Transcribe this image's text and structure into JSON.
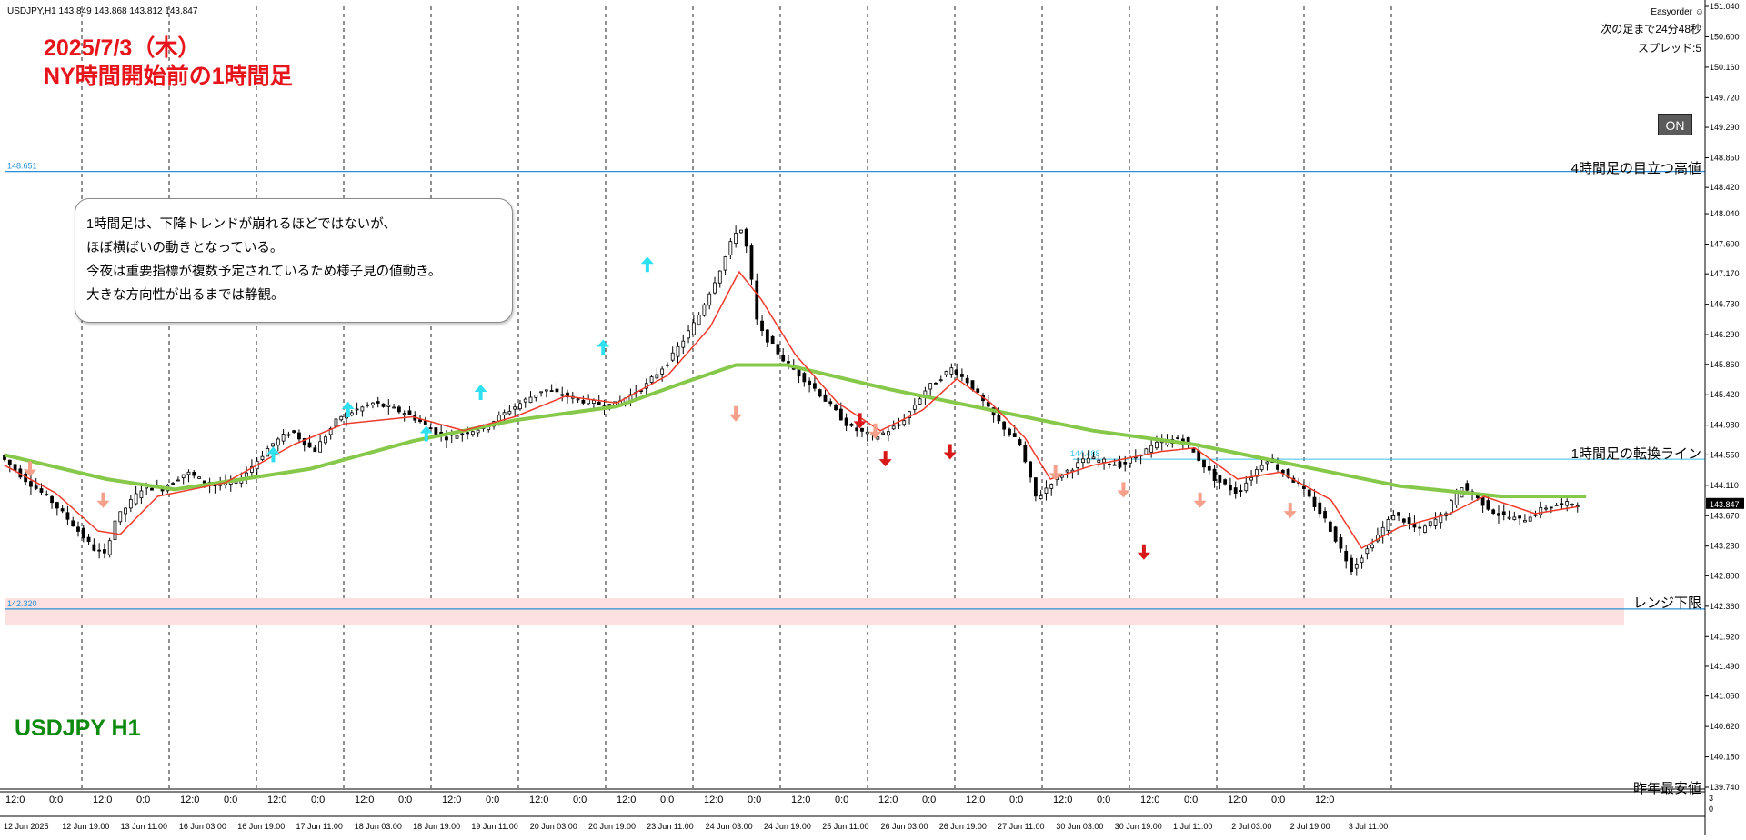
{
  "header": {
    "symbol_line": "USDJPY,H1  143.849 143.868 143.812 143.847"
  },
  "annotations": {
    "headline_line1": "2025/7/3（木）",
    "headline_line2": "NY時間開始前の1時間足",
    "footer_label": "USDJPY H1",
    "note_lines": [
      "1時間足は、下降トレンドが崩れるほどではないが、",
      "ほぼ横ばいの動きとなっている。",
      "今夜は重要指標が複数予定されているため様子見の値動き。",
      "大きな方向性が出るまでは静観。"
    ]
  },
  "ea_panel": {
    "title": "Easyorder ☺",
    "countdown": "次の足まで24分48秒",
    "spread": "スプレッド:5",
    "on_button": "ON"
  },
  "levels": [
    {
      "name": "4h-high",
      "label": "4時間足の目立つ高値",
      "value": 148.651,
      "value_text": "148.651",
      "color": "#2a8fd6"
    },
    {
      "name": "h1-reversal",
      "label": "1時間足の転換ライン",
      "value": 144.488,
      "value_text": "144.488",
      "color": "#38c0e8"
    },
    {
      "name": "range-bottom",
      "label": "レンジ下限",
      "value": 142.32,
      "value_text": "142.320",
      "color": "#2a8fd6"
    },
    {
      "name": "last-year-low",
      "label": "昨年最安値",
      "value": 139.74,
      "value_text": "",
      "color": "#2a8fd6"
    }
  ],
  "chart_data": {
    "type": "candlestick",
    "symbol": "USDJPY",
    "timeframe": "H1",
    "ylim": [
      139.74,
      151.04
    ],
    "y_ticks": [
      "151.040",
      "150.600",
      "150.160",
      "149.720",
      "149.290",
      "148.850",
      "148.420",
      "148.040",
      "147.600",
      "147.170",
      "146.730",
      "146.290",
      "145.860",
      "145.420",
      "144.980",
      "144.550",
      "144.110",
      "143.670",
      "143.230",
      "142.800",
      "142.360",
      "141.920",
      "141.490",
      "141.060",
      "140.620",
      "140.180",
      "139.740"
    ],
    "last_price": 143.847,
    "last_price_text": "143.847",
    "x_date_labels": [
      "12 Jun 2025",
      "12 Jun 19:00",
      "13 Jun 11:00",
      "16 Jun 03:00",
      "16 Jun 19:00",
      "17 Jun 11:00",
      "18 Jun 03:00",
      "18 Jun 19:00",
      "19 Jun 11:00",
      "20 Jun 03:00",
      "20 Jun 19:00",
      "23 Jun 11:00",
      "24 Jun 03:00",
      "24 Jun 19:00",
      "25 Jun 11:00",
      "26 Jun 03:00",
      "26 Jun 19:00",
      "27 Jun 11:00",
      "30 Jun 03:00",
      "30 Jun 19:00",
      "1 Jul 11:00",
      "2 Jul 03:00",
      "2 Jul 19:00",
      "3 Jul 11:00"
    ],
    "x_time_labels": [
      "12:0",
      "0:0",
      "12:0",
      "0:0",
      "12:0",
      "0:0",
      "12:0",
      "0:0",
      "12:0",
      "0:0",
      "12:0",
      "0:0",
      "12:0",
      "0:0",
      "12:0",
      "0:0",
      "12:0",
      "0:0",
      "12:0",
      "0:0",
      "12:0",
      "0:0",
      "12:0",
      "0:0",
      "12:0",
      "0:0",
      "12:0",
      "0:0",
      "12:0",
      "0:0",
      "12:0"
    ],
    "close_path": [
      {
        "x": 0.0,
        "y": 144.55
      },
      {
        "x": 0.015,
        "y": 144.2
      },
      {
        "x": 0.03,
        "y": 143.9
      },
      {
        "x": 0.043,
        "y": 143.55
      },
      {
        "x": 0.055,
        "y": 143.2
      },
      {
        "x": 0.062,
        "y": 143.1
      },
      {
        "x": 0.068,
        "y": 143.6
      },
      {
        "x": 0.085,
        "y": 144.1
      },
      {
        "x": 0.095,
        "y": 144.05
      },
      {
        "x": 0.11,
        "y": 144.3
      },
      {
        "x": 0.125,
        "y": 144.1
      },
      {
        "x": 0.14,
        "y": 144.15
      },
      {
        "x": 0.16,
        "y": 144.7
      },
      {
        "x": 0.172,
        "y": 144.9
      },
      {
        "x": 0.185,
        "y": 144.6
      },
      {
        "x": 0.2,
        "y": 145.1
      },
      {
        "x": 0.22,
        "y": 145.3
      },
      {
        "x": 0.24,
        "y": 145.15
      },
      {
        "x": 0.262,
        "y": 144.8
      },
      {
        "x": 0.285,
        "y": 144.95
      },
      {
        "x": 0.3,
        "y": 145.2
      },
      {
        "x": 0.32,
        "y": 145.5
      },
      {
        "x": 0.34,
        "y": 145.35
      },
      {
        "x": 0.36,
        "y": 145.25
      },
      {
        "x": 0.38,
        "y": 145.55
      },
      {
        "x": 0.395,
        "y": 145.95
      },
      {
        "x": 0.41,
        "y": 146.5
      },
      {
        "x": 0.425,
        "y": 147.3
      },
      {
        "x": 0.435,
        "y": 147.9
      },
      {
        "x": 0.44,
        "y": 147.5
      },
      {
        "x": 0.446,
        "y": 146.4
      },
      {
        "x": 0.462,
        "y": 145.9
      },
      {
        "x": 0.48,
        "y": 145.5
      },
      {
        "x": 0.5,
        "y": 144.95
      },
      {
        "x": 0.515,
        "y": 144.8
      },
      {
        "x": 0.53,
        "y": 145.0
      },
      {
        "x": 0.545,
        "y": 145.5
      },
      {
        "x": 0.56,
        "y": 145.8
      },
      {
        "x": 0.57,
        "y": 145.6
      },
      {
        "x": 0.585,
        "y": 145.1
      },
      {
        "x": 0.6,
        "y": 144.7
      },
      {
        "x": 0.61,
        "y": 143.9
      },
      {
        "x": 0.62,
        "y": 144.2
      },
      {
        "x": 0.64,
        "y": 144.5
      },
      {
        "x": 0.66,
        "y": 144.4
      },
      {
        "x": 0.68,
        "y": 144.7
      },
      {
        "x": 0.695,
        "y": 144.8
      },
      {
        "x": 0.715,
        "y": 144.2
      },
      {
        "x": 0.728,
        "y": 144.0
      },
      {
        "x": 0.745,
        "y": 144.5
      },
      {
        "x": 0.765,
        "y": 144.1
      },
      {
        "x": 0.78,
        "y": 143.6
      },
      {
        "x": 0.795,
        "y": 142.9
      },
      {
        "x": 0.805,
        "y": 143.2
      },
      {
        "x": 0.82,
        "y": 143.7
      },
      {
        "x": 0.835,
        "y": 143.45
      },
      {
        "x": 0.85,
        "y": 143.7
      },
      {
        "x": 0.86,
        "y": 144.1
      },
      {
        "x": 0.87,
        "y": 143.9
      },
      {
        "x": 0.88,
        "y": 143.7
      },
      {
        "x": 0.895,
        "y": 143.6
      },
      {
        "x": 0.91,
        "y": 143.8
      },
      {
        "x": 0.925,
        "y": 143.85
      }
    ],
    "slow_ma": [
      {
        "x": 0.0,
        "y": 144.55
      },
      {
        "x": 0.06,
        "y": 144.2
      },
      {
        "x": 0.1,
        "y": 144.05
      },
      {
        "x": 0.18,
        "y": 144.35
      },
      {
        "x": 0.24,
        "y": 144.75
      },
      {
        "x": 0.3,
        "y": 145.05
      },
      {
        "x": 0.36,
        "y": 145.25
      },
      {
        "x": 0.4,
        "y": 145.6
      },
      {
        "x": 0.43,
        "y": 145.85
      },
      {
        "x": 0.46,
        "y": 145.85
      },
      {
        "x": 0.52,
        "y": 145.5
      },
      {
        "x": 0.58,
        "y": 145.2
      },
      {
        "x": 0.64,
        "y": 144.9
      },
      {
        "x": 0.7,
        "y": 144.7
      },
      {
        "x": 0.76,
        "y": 144.4
      },
      {
        "x": 0.82,
        "y": 144.1
      },
      {
        "x": 0.88,
        "y": 143.95
      },
      {
        "x": 0.93,
        "y": 143.95
      }
    ],
    "fast_ma": [
      {
        "x": 0.0,
        "y": 144.4
      },
      {
        "x": 0.03,
        "y": 144.0
      },
      {
        "x": 0.055,
        "y": 143.45
      },
      {
        "x": 0.068,
        "y": 143.4
      },
      {
        "x": 0.09,
        "y": 143.95
      },
      {
        "x": 0.13,
        "y": 144.15
      },
      {
        "x": 0.17,
        "y": 144.7
      },
      {
        "x": 0.2,
        "y": 145.0
      },
      {
        "x": 0.24,
        "y": 145.1
      },
      {
        "x": 0.27,
        "y": 144.9
      },
      {
        "x": 0.3,
        "y": 145.1
      },
      {
        "x": 0.33,
        "y": 145.4
      },
      {
        "x": 0.36,
        "y": 145.3
      },
      {
        "x": 0.39,
        "y": 145.7
      },
      {
        "x": 0.415,
        "y": 146.4
      },
      {
        "x": 0.432,
        "y": 147.2
      },
      {
        "x": 0.445,
        "y": 146.8
      },
      {
        "x": 0.465,
        "y": 146.0
      },
      {
        "x": 0.49,
        "y": 145.3
      },
      {
        "x": 0.515,
        "y": 144.9
      },
      {
        "x": 0.54,
        "y": 145.2
      },
      {
        "x": 0.56,
        "y": 145.65
      },
      {
        "x": 0.58,
        "y": 145.3
      },
      {
        "x": 0.6,
        "y": 144.8
      },
      {
        "x": 0.615,
        "y": 144.2
      },
      {
        "x": 0.64,
        "y": 144.4
      },
      {
        "x": 0.68,
        "y": 144.6
      },
      {
        "x": 0.7,
        "y": 144.65
      },
      {
        "x": 0.725,
        "y": 144.2
      },
      {
        "x": 0.75,
        "y": 144.3
      },
      {
        "x": 0.78,
        "y": 143.9
      },
      {
        "x": 0.798,
        "y": 143.2
      },
      {
        "x": 0.82,
        "y": 143.5
      },
      {
        "x": 0.85,
        "y": 143.7
      },
      {
        "x": 0.87,
        "y": 143.95
      },
      {
        "x": 0.9,
        "y": 143.7
      },
      {
        "x": 0.925,
        "y": 143.8
      }
    ],
    "signals_up": [
      {
        "x": 0.158,
        "y": 144.55
      },
      {
        "x": 0.202,
        "y": 145.2
      },
      {
        "x": 0.248,
        "y": 144.85
      },
      {
        "x": 0.28,
        "y": 145.45
      },
      {
        "x": 0.352,
        "y": 146.1
      },
      {
        "x": 0.378,
        "y": 147.3
      }
    ],
    "signals_down_light": [
      {
        "x": 0.015,
        "y": 144.35
      },
      {
        "x": 0.058,
        "y": 143.9
      },
      {
        "x": 0.43,
        "y": 145.15
      },
      {
        "x": 0.512,
        "y": 144.9
      },
      {
        "x": 0.618,
        "y": 144.3
      },
      {
        "x": 0.658,
        "y": 144.05
      },
      {
        "x": 0.703,
        "y": 143.9
      },
      {
        "x": 0.756,
        "y": 143.75
      }
    ],
    "signals_down_dark": [
      {
        "x": 0.503,
        "y": 145.05
      },
      {
        "x": 0.518,
        "y": 144.5
      },
      {
        "x": 0.556,
        "y": 144.6
      },
      {
        "x": 0.67,
        "y": 143.15
      }
    ]
  }
}
